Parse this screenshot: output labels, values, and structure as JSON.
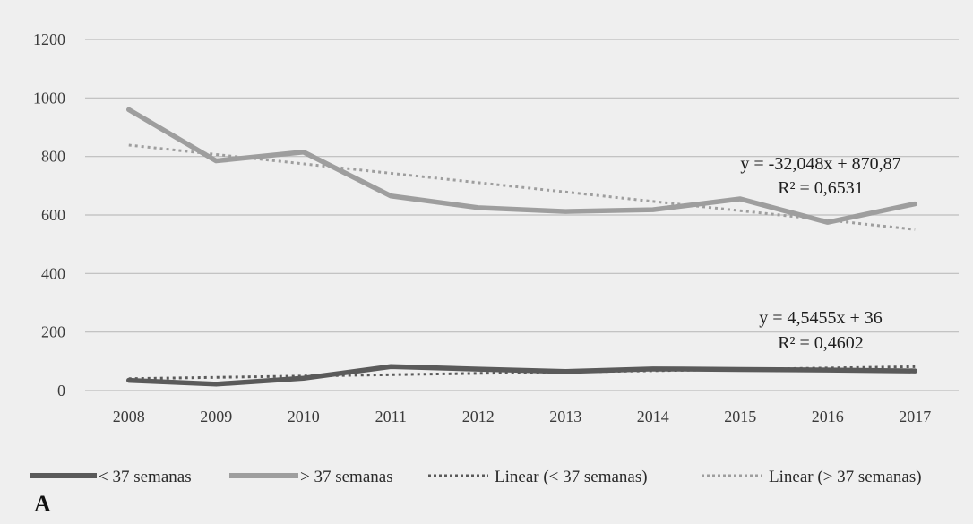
{
  "chart_data": {
    "type": "line",
    "categories": [
      "2008",
      "2009",
      "2010",
      "2011",
      "2012",
      "2013",
      "2014",
      "2015",
      "2016",
      "2017"
    ],
    "ylim": [
      0,
      1200
    ],
    "yticks": [
      "0",
      "200",
      "400",
      "600",
      "800",
      "1000",
      "1200"
    ],
    "grid": true,
    "legend_position": "bottom",
    "series": [
      {
        "name": "< 37 semanas",
        "values": [
          35,
          22,
          42,
          82,
          73,
          65,
          74,
          72,
          70,
          67
        ],
        "color": "#5a5a5a"
      },
      {
        "name": "> 37 semanas",
        "values": [
          960,
          785,
          815,
          665,
          625,
          612,
          618,
          655,
          575,
          638
        ],
        "color": "#9e9e9e"
      }
    ],
    "trendlines": [
      {
        "name": "Linear (< 37 semanas)",
        "slope": 4.5455,
        "intercept": 36,
        "equation": "y = 4,5455x + 36",
        "r2": "R² = 0,4602",
        "color": "#5a5a5a"
      },
      {
        "name": "Linear (> 37 semanas)",
        "slope": -32.048,
        "intercept": 870.87,
        "equation": "y = -32,048x + 870,87",
        "r2": "R² = 0,6531",
        "color": "#9e9e9e"
      }
    ],
    "panel_label": "A"
  }
}
